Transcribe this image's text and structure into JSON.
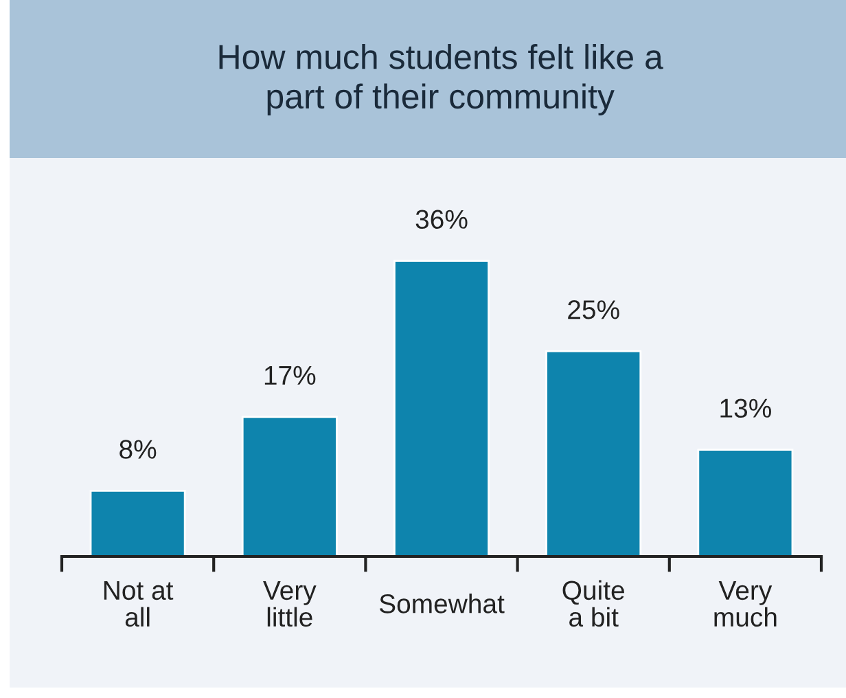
{
  "chart_data": {
    "type": "bar",
    "title": "How much students felt like a\npart of their community",
    "categories": [
      "Not at\nall",
      "Very\nlittle",
      "Somewhat",
      "Quite\na bit",
      "Very\nmuch"
    ],
    "values": [
      8,
      17,
      36,
      25,
      13
    ],
    "value_labels": [
      "8%",
      "17%",
      "36%",
      "25%",
      "13%"
    ],
    "color": "#0e84ad",
    "grid": false,
    "legend": false
  }
}
